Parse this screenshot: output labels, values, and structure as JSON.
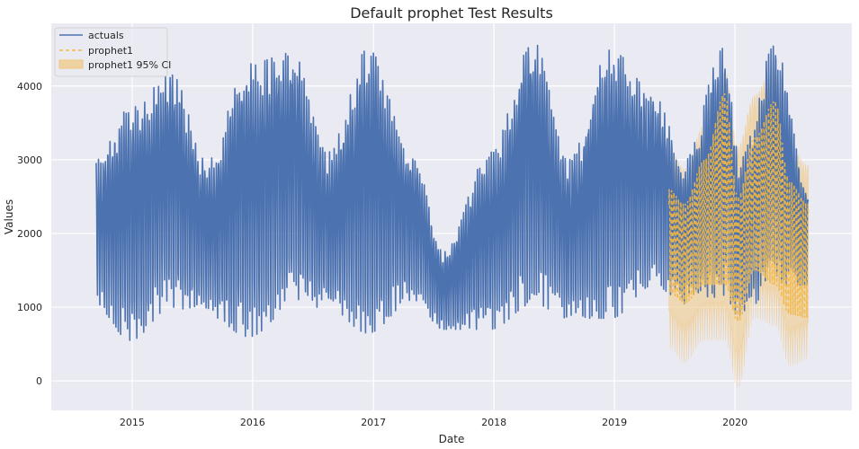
{
  "chart_data": {
    "type": "line",
    "title": "Default prophet Test Results",
    "xlabel": "Date",
    "ylabel": "Values",
    "x_ticks": [
      "2015",
      "2016",
      "2017",
      "2018",
      "2019",
      "2020"
    ],
    "y_ticks": [
      0,
      1000,
      2000,
      3000,
      4000
    ],
    "xlim": [
      "2014-05-01",
      "2020-12-20"
    ],
    "ylim": [
      -400,
      4850
    ],
    "grid": true,
    "legend_position": "top-left",
    "colors": {
      "actuals": "#4c72b0",
      "prophet1": "#f2b640",
      "ci_fill": "#f0c77f",
      "background": "#eaeaf2",
      "grid": "#ffffff"
    },
    "actuals_range": [
      "2014-09-14",
      "2020-08-10"
    ],
    "forecast_range": [
      "2019-06-15",
      "2020-08-10"
    ],
    "actuals_seasonal_envelope": {
      "dates": [
        "2014-09-15",
        "2014-12-25",
        "2015-05-01",
        "2015-08-15",
        "2015-12-20",
        "2016-05-01",
        "2016-08-15",
        "2016-12-15",
        "2017-05-01",
        "2017-08-01",
        "2017-12-20",
        "2018-05-01",
        "2018-08-15",
        "2018-12-20",
        "2019-05-01",
        "2019-08-01",
        "2019-12-01",
        "2020-01-15",
        "2020-05-01",
        "2020-08-10"
      ],
      "upper": [
        3000,
        3700,
        4150,
        3000,
        4300,
        4450,
        3100,
        4500,
        3050,
        1750,
        3100,
        4600,
        3000,
        4500,
        3900,
        3000,
        4550,
        3000,
        4550,
        2600
      ],
      "lower": [
        1000,
        550,
        1000,
        900,
        600,
        1000,
        1000,
        650,
        1100,
        700,
        700,
        1050,
        850,
        850,
        1300,
        1050,
        1150,
        850,
        1300,
        1300
      ]
    },
    "prophet1_envelope": {
      "dates": [
        "2019-06-15",
        "2019-08-01",
        "2019-10-01",
        "2019-12-01",
        "2020-01-10",
        "2020-03-01",
        "2020-05-01",
        "2020-06-15",
        "2020-08-10"
      ],
      "upper": [
        2600,
        2400,
        3000,
        3900,
        2500,
        3300,
        3800,
        2700,
        2400
      ],
      "lower": [
        1200,
        1050,
        1300,
        1300,
        800,
        1500,
        1300,
        900,
        850
      ]
    },
    "ci_envelope": {
      "dates": [
        "2019-06-15",
        "2019-08-01",
        "2019-10-01",
        "2019-12-01",
        "2020-01-10",
        "2020-03-01",
        "2020-05-01",
        "2020-06-15",
        "2020-08-10"
      ],
      "upper": [
        3200,
        2900,
        3500,
        4250,
        3200,
        3900,
        4350,
        3200,
        2950
      ],
      "lower": [
        400,
        200,
        500,
        500,
        -150,
        800,
        700,
        150,
        250
      ]
    },
    "series": [
      {
        "name": "actuals",
        "style": "solid"
      },
      {
        "name": "prophet1",
        "style": "dashed"
      },
      {
        "name": "prophet1 95% CI",
        "style": "fill"
      }
    ]
  }
}
